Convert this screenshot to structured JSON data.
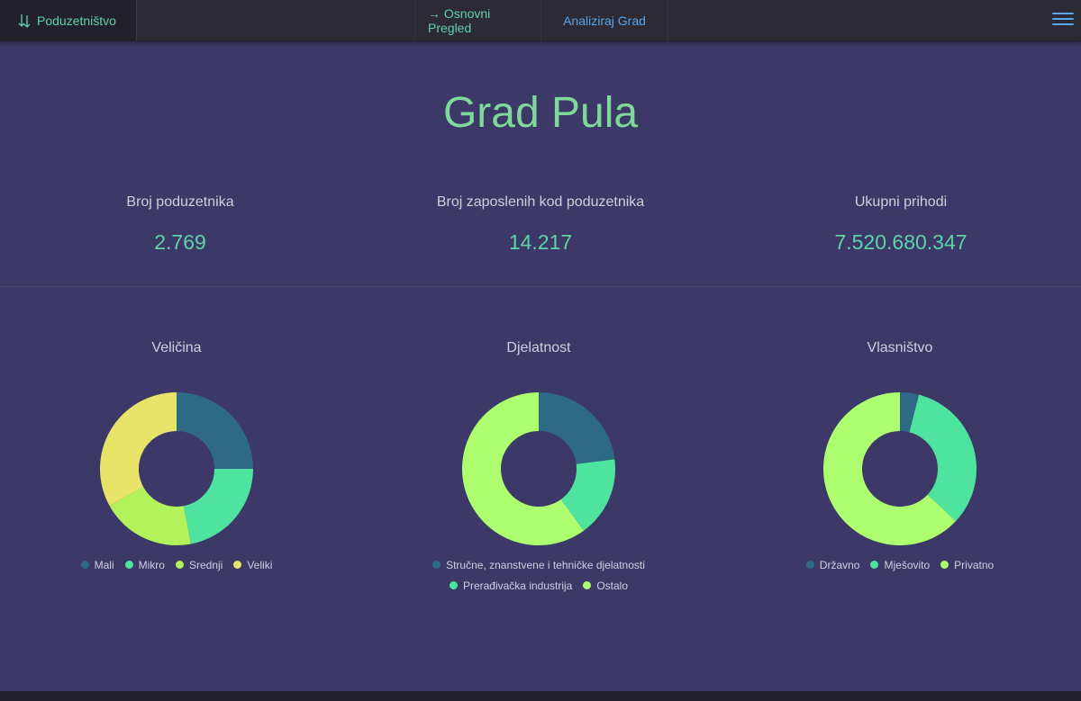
{
  "navbar": {
    "brand_label": "Poduzetništvo",
    "brand_icon": "sort-arrows-icon",
    "links": [
      {
        "label": "→ Osnovni Pregled"
      },
      {
        "label": "Analiziraj Grad"
      }
    ],
    "menu_icon": "hamburger-icon"
  },
  "page": {
    "title": "Grad Pula"
  },
  "stats": [
    {
      "label": "Broj poduzetnika",
      "value": "2.769"
    },
    {
      "label": "Broj zaposlenih kod poduzetnika",
      "value": "14.217"
    },
    {
      "label": "Ukupni prihodi",
      "value": "7.520.680.347"
    }
  ],
  "colors": {
    "accent_green": "#7fd99a",
    "value_teal": "#5ed3a8",
    "link_blue": "#5aa6e8",
    "background": "#3c3867",
    "navbar": "#2b2a35"
  },
  "chart_data": [
    {
      "type": "pie",
      "title": "Veličina",
      "categories": [
        "Mali",
        "Mikro",
        "Srednji",
        "Veliki"
      ],
      "values": [
        25,
        22,
        20,
        33
      ],
      "colors": [
        "#2e6a85",
        "#4fe3a0",
        "#b2f25a",
        "#e8e46a"
      ],
      "donut": true,
      "legend": "bottom"
    },
    {
      "type": "pie",
      "title": "Djelatnost",
      "categories": [
        "Stručne, znanstvene i tehničke djelatnosti",
        "Prerađivačka industrija",
        "Ostalo"
      ],
      "values": [
        23,
        17,
        60
      ],
      "colors": [
        "#2e6a85",
        "#4fe3a0",
        "#adff70"
      ],
      "donut": true,
      "legend": "bottom"
    },
    {
      "type": "pie",
      "title": "Vlasništvo",
      "categories": [
        "Državno",
        "Mješovito",
        "Privatno"
      ],
      "values": [
        4,
        33,
        63
      ],
      "colors": [
        "#2e6a85",
        "#4fe3a0",
        "#adff70"
      ],
      "donut": true,
      "legend": "bottom"
    }
  ]
}
